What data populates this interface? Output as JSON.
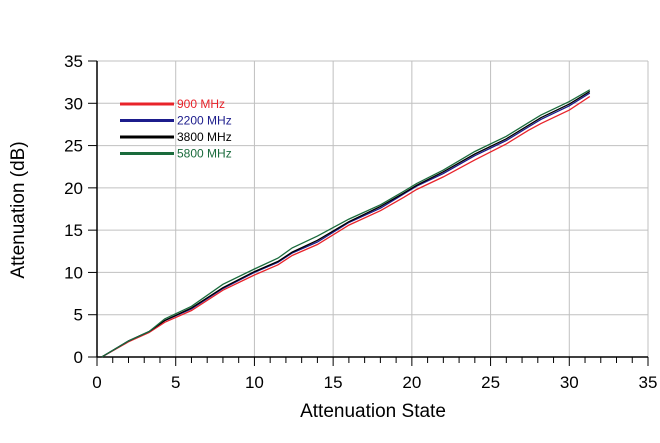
{
  "chart_data": {
    "type": "line",
    "xlabel": "Attenuation  State",
    "ylabel": "Attenuation  (dB)",
    "xlim": [
      0,
      35
    ],
    "ylim": [
      0,
      35
    ],
    "xticks": [
      0,
      5,
      10,
      15,
      20,
      25,
      30,
      35
    ],
    "yticks": [
      0,
      5,
      10,
      15,
      20,
      25,
      30,
      35
    ],
    "grid": true,
    "legend_position": "top-left",
    "x": [
      0.3,
      2,
      3.3,
      4.3,
      6,
      8,
      10,
      11.5,
      12.4,
      14,
      16,
      18,
      19.5,
      20.3,
      22,
      24,
      26,
      27.4,
      28.2,
      30,
      31.3
    ],
    "series": [
      {
        "name": "900 MHz",
        "color": "#e8232a",
        "values": [
          0,
          1.8,
          2.9,
          4.1,
          5.5,
          7.9,
          9.7,
          10.9,
          12.0,
          13.3,
          15.6,
          17.3,
          18.9,
          19.8,
          21.3,
          23.3,
          25.2,
          26.8,
          27.6,
          29.2,
          30.8
        ]
      },
      {
        "name": "2200 MHz",
        "color": "#1c1c8c",
        "values": [
          0,
          1.9,
          3.0,
          4.3,
          5.7,
          8.1,
          10.0,
          11.2,
          12.3,
          13.6,
          15.9,
          17.6,
          19.3,
          20.2,
          21.7,
          23.8,
          25.6,
          27.2,
          28.1,
          29.7,
          31.2
        ]
      },
      {
        "name": "3800 MHz",
        "color": "#000000",
        "values": [
          0,
          1.9,
          3.0,
          4.3,
          5.8,
          8.2,
          10.1,
          11.3,
          12.4,
          13.8,
          16.0,
          17.8,
          19.4,
          20.3,
          21.9,
          24.0,
          25.8,
          27.4,
          28.3,
          29.9,
          31.4
        ]
      },
      {
        "name": "5800 MHz",
        "color": "#1a6b3c",
        "values": [
          0,
          1.9,
          3.0,
          4.5,
          6.0,
          8.6,
          10.4,
          11.7,
          12.9,
          14.3,
          16.3,
          18.0,
          19.6,
          20.5,
          22.1,
          24.3,
          26.1,
          27.7,
          28.6,
          30.2,
          31.6
        ]
      }
    ]
  }
}
